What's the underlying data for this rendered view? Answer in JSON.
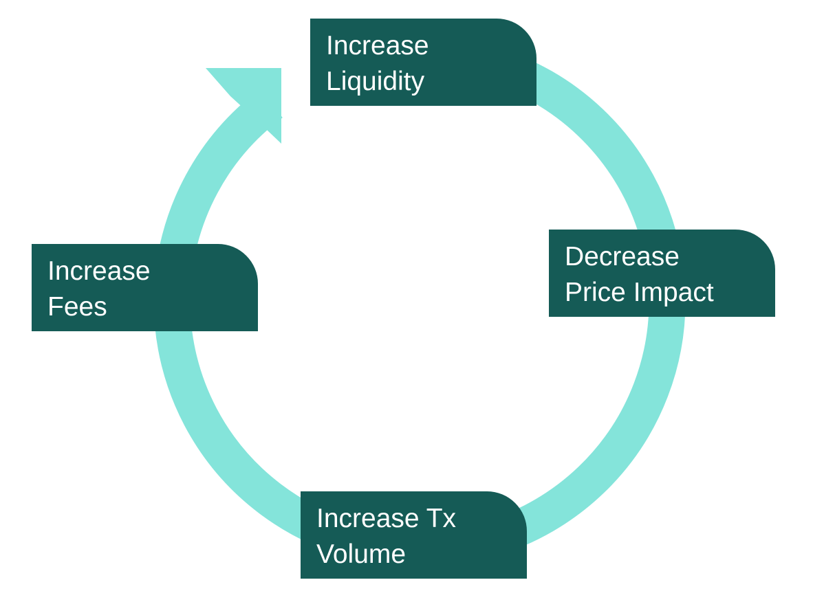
{
  "colors": {
    "ring": "#84e4da",
    "box": "#155b56",
    "text": "#ffffff",
    "background": "#ffffff"
  },
  "nodes": {
    "liquidity": {
      "line1": "Increase",
      "line2": "Liquidity"
    },
    "price_impact": {
      "line1": "Decrease",
      "line2": "Price Impact"
    },
    "tx_volume": {
      "line1": "Increase Tx",
      "line2": "Volume"
    },
    "fees": {
      "line1": "Increase",
      "line2": "Fees"
    }
  }
}
